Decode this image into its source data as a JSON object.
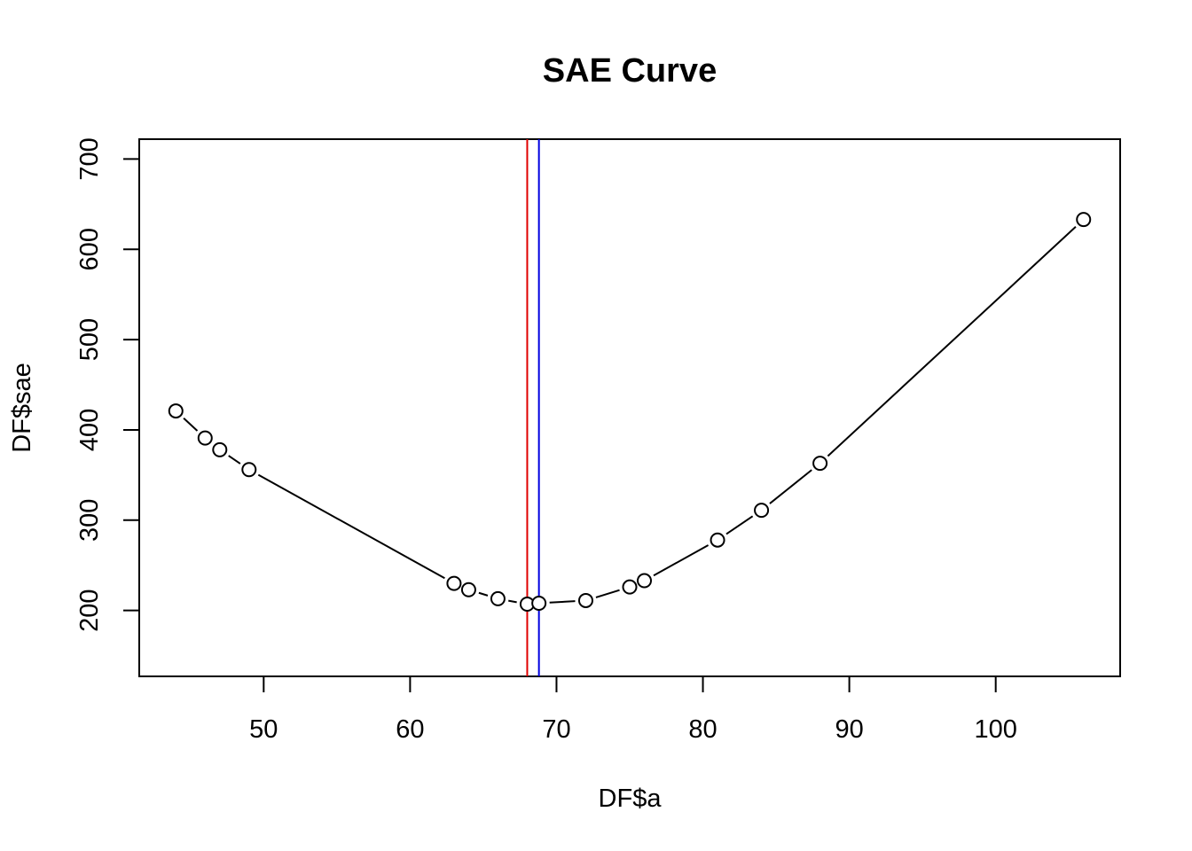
{
  "chart_data": {
    "type": "scatter",
    "title": "SAE Curve",
    "xlabel": "DF$a",
    "ylabel": "DF$sae",
    "xlim": [
      41.5,
      108.5
    ],
    "ylim": [
      127,
      722
    ],
    "xticks": [
      50,
      60,
      70,
      80,
      90,
      100
    ],
    "yticks": [
      200,
      300,
      400,
      500,
      600,
      700
    ],
    "x": [
      44,
      46,
      47,
      49,
      63,
      64,
      66,
      68,
      68.8,
      72,
      75,
      76,
      81,
      84,
      88,
      106
    ],
    "y": [
      421,
      391,
      378,
      356,
      230,
      223,
      213,
      207,
      208,
      211,
      226,
      233,
      278,
      311,
      363,
      633
    ],
    "vlines": [
      {
        "x": 68.0,
        "color": "#e00000"
      },
      {
        "x": 68.8,
        "color": "#0000e0"
      }
    ],
    "line_color": "#000000",
    "grid": false
  }
}
